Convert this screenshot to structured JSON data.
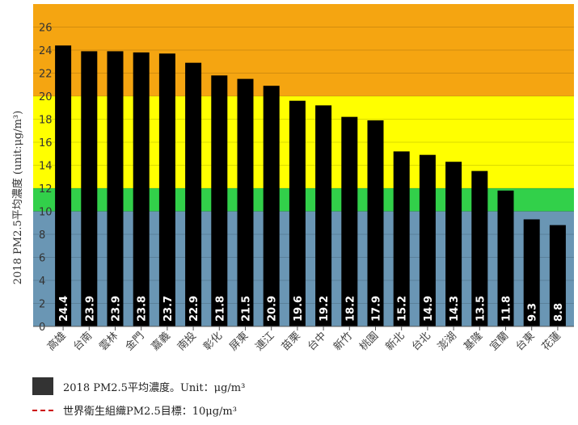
{
  "chart_data": {
    "type": "bar",
    "ylabel": "2018 PM2.5平均濃度 (unit:μg/m³)",
    "ylim": [
      0,
      28
    ],
    "yticks": [
      0,
      2,
      4,
      6,
      8,
      10,
      12,
      14,
      16,
      18,
      20,
      22,
      24,
      26
    ],
    "categories": [
      "高雄",
      "台南",
      "雲林",
      "金門",
      "嘉義",
      "南投",
      "彰化",
      "屏東",
      "連江",
      "苗栗",
      "台中",
      "新竹",
      "桃園",
      "新北",
      "台北",
      "澎湖",
      "基隆",
      "宜蘭",
      "台東",
      "花蓮"
    ],
    "series": [
      {
        "name": "2018 PM2.5平均濃度。Unit：μg/m³",
        "values": [
          24.4,
          23.9,
          23.9,
          23.8,
          23.7,
          22.9,
          21.8,
          21.5,
          20.9,
          19.6,
          19.2,
          18.2,
          17.9,
          15.2,
          14.9,
          14.3,
          13.5,
          11.8,
          9.3,
          8.8
        ],
        "color": "#000000"
      }
    ],
    "reference_line": {
      "name": "世界衛生組織PM2.5目標：10μg/m³",
      "value": 10,
      "color": "#cc0000"
    },
    "bands": [
      {
        "from": 0,
        "to": 10,
        "color": "#6a96b4"
      },
      {
        "from": 10,
        "to": 12,
        "color": "#32d04a"
      },
      {
        "from": 12,
        "to": 20,
        "color": "#ffff00"
      },
      {
        "from": 20,
        "to": 28,
        "color": "#f5a511"
      }
    ],
    "legend_position": "bottom-left",
    "grid": true
  }
}
